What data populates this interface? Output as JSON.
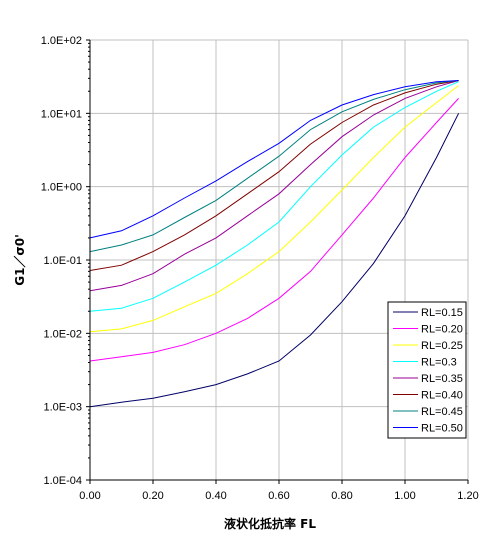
{
  "chart_data": {
    "type": "line",
    "xlabel": "液状化抵抗率 FL",
    "ylabel": "G1／σ0'",
    "xlim": [
      0,
      1.2
    ],
    "ylim": [
      0.0001,
      100
    ],
    "y_scale": "log",
    "grid": true,
    "legend_position": "bottom-right",
    "x_ticks": [
      "0.00",
      "0.20",
      "0.40",
      "0.60",
      "0.80",
      "1.00",
      "1.20"
    ],
    "x_tick_values": [
      0,
      0.2,
      0.4,
      0.6,
      0.8,
      1.0,
      1.2
    ],
    "y_ticks": [
      "1.0E-04",
      "1.0E-03",
      "1.0E-02",
      "1.0E-01",
      "1.0E+00",
      "1.0E+01",
      "1.0E+02"
    ],
    "y_tick_values": [
      0.0001,
      0.001,
      0.01,
      0.1,
      1,
      10,
      100
    ],
    "x": [
      0,
      0.1,
      0.2,
      0.3,
      0.4,
      0.5,
      0.6,
      0.7,
      0.8,
      0.9,
      1.0,
      1.1,
      1.17
    ],
    "series": [
      {
        "name": "RL=0.15",
        "color": "#000066",
        "values": [
          0.001,
          0.00115,
          0.0013,
          0.0016,
          0.002,
          0.0028,
          0.0042,
          0.0095,
          0.027,
          0.09,
          0.4,
          2.5,
          10
        ]
      },
      {
        "name": "RL=0.20",
        "color": "#ff00ff",
        "values": [
          0.0042,
          0.0048,
          0.0055,
          0.007,
          0.01,
          0.016,
          0.03,
          0.07,
          0.22,
          0.7,
          2.5,
          7.5,
          16
        ]
      },
      {
        "name": "RL=0.25",
        "color": "#ffff00",
        "values": [
          0.0105,
          0.0115,
          0.015,
          0.023,
          0.035,
          0.065,
          0.13,
          0.33,
          0.9,
          2.5,
          6.5,
          14,
          24
        ]
      },
      {
        "name": "RL=0.3",
        "color": "#00ffff",
        "values": [
          0.02,
          0.022,
          0.03,
          0.05,
          0.085,
          0.16,
          0.33,
          1.0,
          2.7,
          6.5,
          12,
          20,
          27
        ]
      },
      {
        "name": "RL=0.35",
        "color": "#990099",
        "values": [
          0.038,
          0.045,
          0.065,
          0.12,
          0.2,
          0.4,
          0.8,
          2.0,
          4.8,
          9.5,
          16,
          23,
          28
        ]
      },
      {
        "name": "RL=0.40",
        "color": "#800000",
        "values": [
          0.072,
          0.085,
          0.13,
          0.22,
          0.4,
          0.8,
          1.6,
          3.8,
          7.5,
          13,
          19,
          25,
          28
        ]
      },
      {
        "name": "RL=0.45",
        "color": "#008080",
        "values": [
          0.13,
          0.16,
          0.22,
          0.38,
          0.65,
          1.3,
          2.6,
          6.0,
          10.5,
          15.5,
          21,
          26,
          28
        ]
      },
      {
        "name": "RL=0.50",
        "color": "#0000ff",
        "values": [
          0.2,
          0.25,
          0.4,
          0.7,
          1.2,
          2.2,
          3.9,
          8.0,
          13,
          18,
          23,
          27,
          28
        ]
      }
    ]
  }
}
